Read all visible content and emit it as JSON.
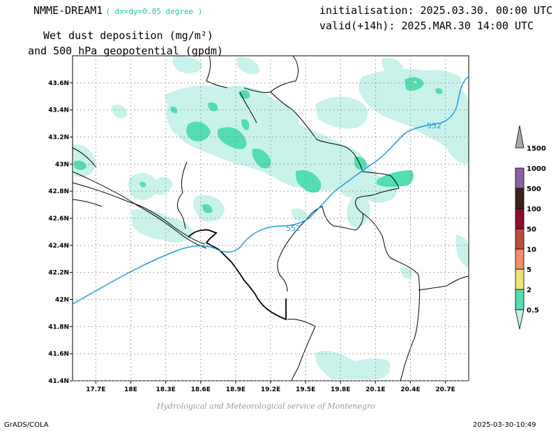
{
  "header": {
    "model": "NMME-DREAM1",
    "resolution": "( dx=dy=0.05 degree )",
    "init": "initialisation: 2025.03.30. 00:00 UTC",
    "valid": "valid(+14h): 2025.MAR.30 14:00 UTC",
    "variable_line1": "Wet dust deposition (mg/m²)",
    "variable_line2": "and 500 hPa geopotential (gpdm)"
  },
  "map": {
    "lon_ticks": [
      "17.7E",
      "18E",
      "18.3E",
      "18.6E",
      "18.9E",
      "19.2E",
      "19.5E",
      "19.8E",
      "20.1E",
      "20.4E",
      "20.7E"
    ],
    "lat_ticks": [
      "43.6N",
      "43.4N",
      "43.2N",
      "43N",
      "42.8N",
      "42.6N",
      "42.4N",
      "42.2N",
      "42N",
      "41.8N",
      "41.6N",
      "41.4N"
    ],
    "lon_range": [
      17.5,
      20.9
    ],
    "lat_range": [
      41.4,
      43.8
    ],
    "grid": true,
    "contour_label": "552",
    "contour_color": "#1a9ae0"
  },
  "legend": {
    "levels": [
      {
        "label": "0.5",
        "color": "#c8f2ea"
      },
      {
        "label": "2",
        "color": "#52ddb2"
      },
      {
        "label": "5",
        "color": "#f0e27a"
      },
      {
        "label": "10",
        "color": "#ee8e6a"
      },
      {
        "label": "50",
        "color": "#b84e40"
      },
      {
        "label": "100",
        "color": "#8e0c2c"
      },
      {
        "label": "500",
        "color": "#3a2418"
      },
      {
        "label": "1000",
        "color": "#8c60a2"
      },
      {
        "label": "1500",
        "color": "#a8a8a8"
      }
    ]
  },
  "footer": {
    "credit": "Hydrological and Meteorological service of Montenegro",
    "left": "GrADS/COLA",
    "right": "2025-03-30-10:49"
  }
}
